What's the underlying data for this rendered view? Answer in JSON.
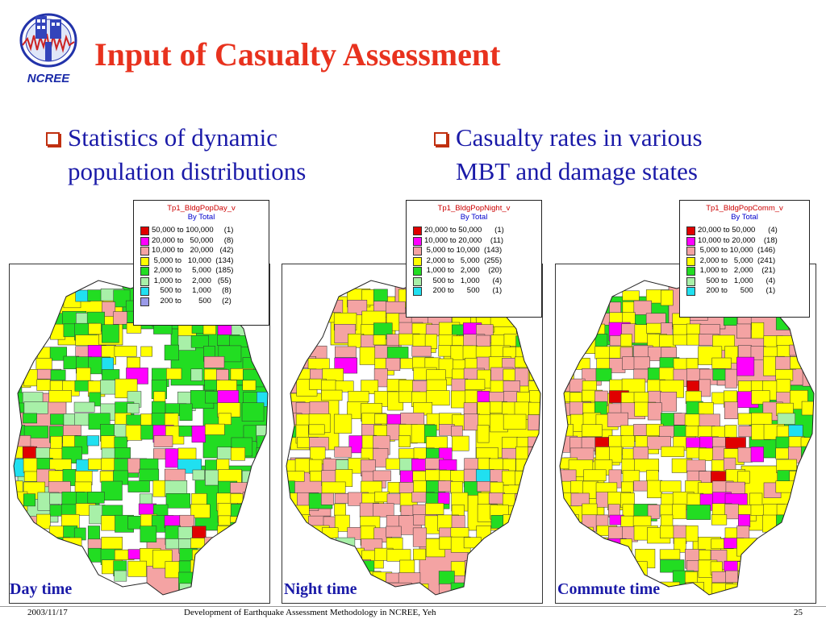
{
  "header": {
    "logo_text": "NCREE",
    "title": "Input of Casualty Assessment"
  },
  "bullets": [
    {
      "line1": "Statistics of dynamic",
      "line2": "population distributions"
    },
    {
      "line1": "Casualty rates in various",
      "line2": "MBT and damage states"
    }
  ],
  "maps": [
    {
      "caption": "Day time",
      "legend_title": "Tp1_BldgPopDay_v",
      "legend_subtitle": "By Total",
      "rows": [
        {
          "label": "50,000 to 100,000     (1)",
          "color": "#e00000"
        },
        {
          "label": "20,000 to   50,000     (8)",
          "color": "#ff00ff"
        },
        {
          "label": "10,000 to   20,000   (42)",
          "color": "#f4a3a3"
        },
        {
          "label": " 5,000 to   10,000  (134)",
          "color": "#ffff00"
        },
        {
          "label": " 2,000 to     5,000  (185)",
          "color": "#22dd22"
        },
        {
          "label": " 1,000 to     2,000   (55)",
          "color": "#a8f0a8"
        },
        {
          "label": "    500 to     1,000     (8)",
          "color": "#20e0f0"
        },
        {
          "label": "    200 to        500     (2)",
          "color": "#9a9ae8"
        }
      ]
    },
    {
      "caption": "Night time",
      "legend_title": "Tp1_BldgPopNight_v",
      "legend_subtitle": "By Total",
      "rows": [
        {
          "label": "20,000 to 50,000      (1)",
          "color": "#e00000"
        },
        {
          "label": "10,000 to 20,000    (11)",
          "color": "#ff00ff"
        },
        {
          "label": " 5,000 to 10,000  (143)",
          "color": "#f4a3a3"
        },
        {
          "label": " 2,000 to   5,000  (255)",
          "color": "#ffff00"
        },
        {
          "label": " 1,000 to   2,000    (20)",
          "color": "#22dd22"
        },
        {
          "label": "    500 to   1,000      (4)",
          "color": "#a8f0a8"
        },
        {
          "label": "    200 to      500      (1)",
          "color": "#20e0f0"
        }
      ]
    },
    {
      "caption": "Commute time",
      "legend_title": "Tp1_BldgPopComm_v",
      "legend_subtitle": "By Total",
      "rows": [
        {
          "label": "20,000 to 50,000      (4)",
          "color": "#e00000"
        },
        {
          "label": "10,000 to 20,000    (18)",
          "color": "#ff00ff"
        },
        {
          "label": " 5,000 to 10,000  (146)",
          "color": "#f4a3a3"
        },
        {
          "label": " 2,000 to   5,000  (241)",
          "color": "#ffff00"
        },
        {
          "label": " 1,000 to   2,000    (21)",
          "color": "#22dd22"
        },
        {
          "label": "    500 to   1,000      (4)",
          "color": "#a8f0a8"
        },
        {
          "label": "    200 to      500      (1)",
          "color": "#20e0f0"
        }
      ]
    }
  ],
  "footer": {
    "date": "2003/11/17",
    "center": "Development of Earthquake Assessment Methodology in NCREE, Yeh",
    "page": "25"
  },
  "colors": {
    "title": "#e8321e",
    "body_text": "#1a1aa8",
    "bullet_box": "#c03010"
  }
}
